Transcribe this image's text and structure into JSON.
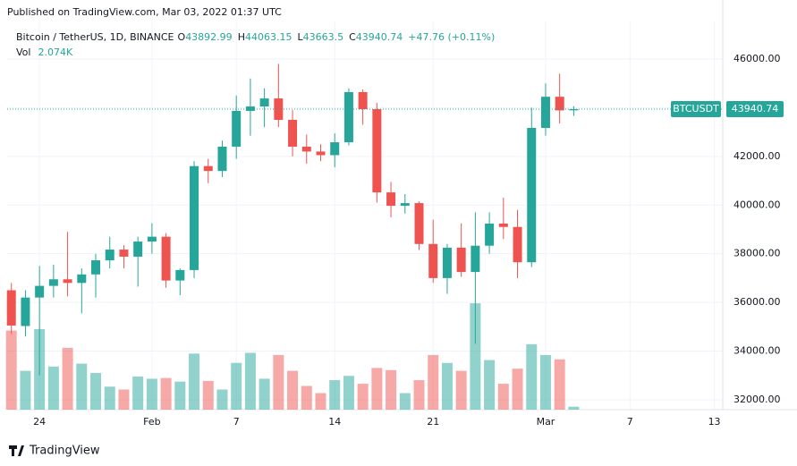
{
  "chart_data": {
    "type": "candlestick",
    "published": "Published on TradingView.com, Mar 03, 2022 01:37 UTC",
    "title": "Bitcoin / TetherUS, 1D, BINANCE",
    "ohlc_prefixes": [
      "O",
      "H",
      "L",
      "C"
    ],
    "change": "+47.76 (+0.11%)",
    "volume_label": "Vol",
    "symbol": "BTCUSDT",
    "brand": "TradingView",
    "up_color": "#26a69a",
    "down_color": "#ef5350",
    "open": [
      36500,
      35030,
      36200,
      36680,
      36950,
      36800,
      37150,
      37730,
      38170,
      37880,
      38500,
      38700,
      36900,
      37330,
      41600,
      41400,
      42400,
      43870,
      44050,
      44380,
      43500,
      42400,
      42200,
      42050,
      42580,
      44640,
      43940,
      40520,
      39970,
      40080,
      38400,
      37000,
      38250,
      37250,
      38330,
      39240,
      39100,
      37650,
      43170,
      44450,
      43892.99
    ],
    "high": [
      36800,
      36500,
      37500,
      37550,
      38900,
      37400,
      38000,
      38700,
      38350,
      38700,
      39250,
      38850,
      37400,
      41800,
      41900,
      42650,
      44500,
      45200,
      44800,
      45800,
      43900,
      42900,
      42500,
      42950,
      44800,
      44750,
      44200,
      40950,
      40450,
      40150,
      39400,
      38400,
      39250,
      39700,
      39700,
      40300,
      39800,
      44000,
      45000,
      45400,
      44063.15
    ],
    "low": [
      34700,
      34600,
      33000,
      36200,
      36250,
      35550,
      36200,
      37400,
      37400,
      36650,
      38000,
      36600,
      36300,
      37000,
      40900,
      41150,
      41900,
      42850,
      43200,
      43200,
      42000,
      41700,
      41800,
      41550,
      42450,
      43300,
      40100,
      39500,
      39650,
      38150,
      36800,
      36350,
      37050,
      34300,
      38000,
      38600,
      37000,
      37450,
      42850,
      43350,
      43663.5
    ],
    "close": [
      35050,
      36200,
      36680,
      36950,
      36800,
      37150,
      37730,
      38170,
      37880,
      38500,
      38700,
      36900,
      37330,
      41600,
      41400,
      42400,
      43870,
      44050,
      44380,
      43500,
      42400,
      42200,
      42050,
      42580,
      44640,
      43940,
      40520,
      39970,
      40080,
      38400,
      37000,
      38250,
      37250,
      38330,
      39240,
      39100,
      37650,
      43170,
      44450,
      43890,
      43940.74
    ],
    "volume": [
      55000,
      27000,
      56000,
      30000,
      43000,
      32000,
      25500,
      16000,
      14000,
      23000,
      21500,
      22000,
      19500,
      39000,
      20000,
      14000,
      32500,
      39500,
      21500,
      38000,
      27000,
      16500,
      11500,
      20500,
      23500,
      18000,
      29000,
      27500,
      11500,
      20500,
      38000,
      32500,
      27000,
      74000,
      34500,
      18000,
      28500,
      45500,
      38000,
      35000,
      2074
    ],
    "volume_value_labels": {
      "40": "2.074K"
    },
    "volume_ylim": [
      0,
      270000
    ],
    "xlim": [
      -0.3,
      50.6
    ],
    "xticks": [
      {
        "value": 2,
        "label": "24"
      },
      {
        "value": 10,
        "label": "Feb"
      },
      {
        "value": 16,
        "label": "7"
      },
      {
        "value": 23,
        "label": "14"
      },
      {
        "value": 30,
        "label": "21"
      },
      {
        "value": 38,
        "label": "Mar"
      },
      {
        "value": 44,
        "label": "7"
      },
      {
        "value": 50,
        "label": "13"
      }
    ],
    "ylim": [
      31594,
      47543
    ],
    "yticks": [
      {
        "value": 32000,
        "label": "32000.00"
      },
      {
        "value": 34000,
        "label": "34000.00"
      },
      {
        "value": 36000,
        "label": "36000.00"
      },
      {
        "value": 38000,
        "label": "38000.00"
      },
      {
        "value": 40000,
        "label": "40000.00"
      },
      {
        "value": 42000,
        "label": "42000.00"
      },
      {
        "value": 44000,
        "label": "44000.00"
      },
      {
        "value": 46000,
        "label": "46000.00"
      }
    ],
    "grid": true
  }
}
